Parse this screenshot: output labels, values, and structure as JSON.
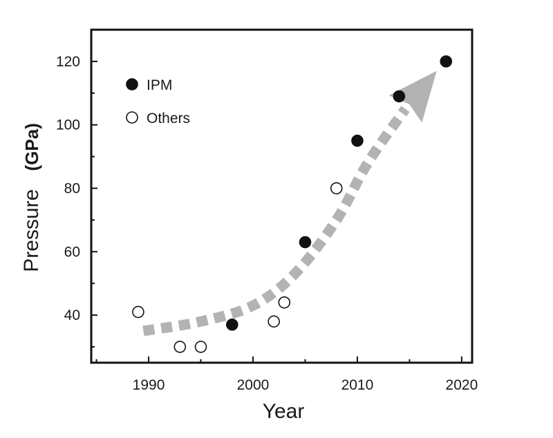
{
  "chart_data": {
    "type": "scatter",
    "xlabel": "Year",
    "ylabel_main": "Pressure",
    "ylabel_unit": "(GPa)",
    "xlim": [
      1984.5,
      2021
    ],
    "ylim": [
      25,
      130
    ],
    "xticks": [
      1990,
      2000,
      2010,
      2020
    ],
    "yticks": [
      40,
      60,
      80,
      100,
      120
    ],
    "xtick_labels": [
      "1990",
      "2000",
      "2010",
      "2020"
    ],
    "ytick_labels": [
      "40",
      "60",
      "80",
      "100",
      "120"
    ],
    "grid": false,
    "legend": {
      "position": "top-left"
    },
    "series": [
      {
        "name": "IPM",
        "marker": "filled-circle",
        "color": "#111111",
        "points": [
          {
            "x": 1998,
            "y": 37
          },
          {
            "x": 2005,
            "y": 63
          },
          {
            "x": 2010,
            "y": 95
          },
          {
            "x": 2014,
            "y": 109
          },
          {
            "x": 2018.5,
            "y": 120
          }
        ]
      },
      {
        "name": "Others",
        "marker": "open-circle",
        "color": "#111111",
        "points": [
          {
            "x": 1989,
            "y": 41
          },
          {
            "x": 1993,
            "y": 30
          },
          {
            "x": 1995,
            "y": 30
          },
          {
            "x": 2002,
            "y": 38
          },
          {
            "x": 2003,
            "y": 44
          },
          {
            "x": 2008,
            "y": 80
          }
        ]
      }
    ],
    "trend_arrow": {
      "color": "#b3b3b3",
      "points": [
        {
          "x": 1989.5,
          "y": 35
        },
        {
          "x": 1995,
          "y": 38
        },
        {
          "x": 2000,
          "y": 43
        },
        {
          "x": 2004,
          "y": 53
        },
        {
          "x": 2008,
          "y": 70
        },
        {
          "x": 2011,
          "y": 88
        },
        {
          "x": 2014.6,
          "y": 105
        }
      ],
      "head_tip": {
        "x": 2017.6,
        "y": 117
      }
    }
  }
}
